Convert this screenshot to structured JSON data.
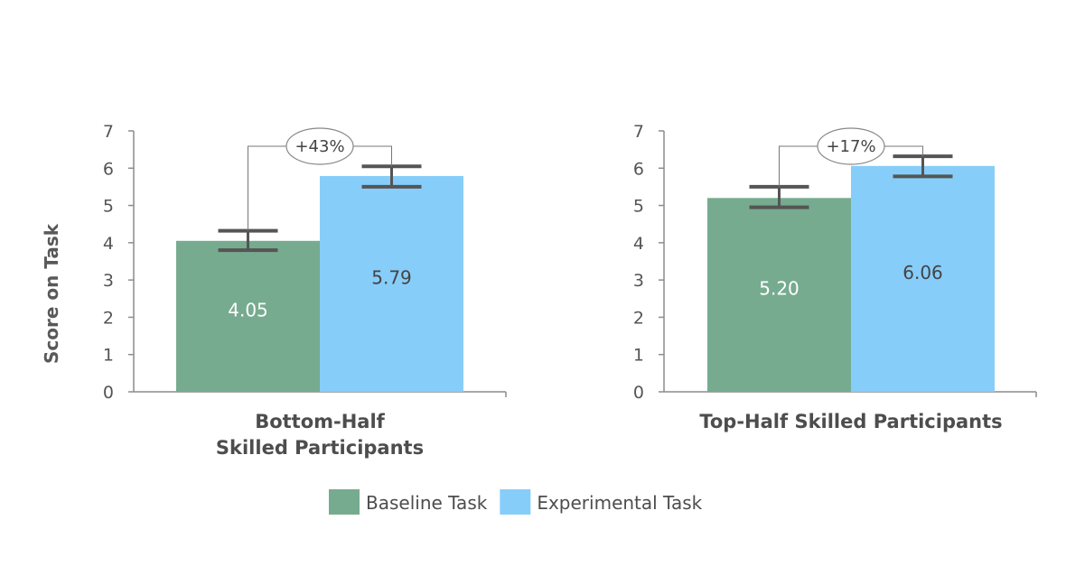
{
  "chart_data": [
    {
      "type": "bar",
      "categories": [
        "Baseline Task",
        "Experimental Task"
      ],
      "values": [
        4.05,
        5.79
      ],
      "error_bars": [
        [
          3.8,
          4.32
        ],
        [
          5.5,
          6.05
        ]
      ],
      "value_labels": [
        "4.05",
        "5.79"
      ],
      "xlabel": "Bottom-Half\nSkilled Participants",
      "ylabel": "Score on Task",
      "ylim": [
        0,
        7
      ],
      "yticks": [
        "0",
        "1",
        "2",
        "3",
        "4",
        "5",
        "6",
        "7"
      ],
      "annotation": "+43%",
      "grid": false
    },
    {
      "type": "bar",
      "categories": [
        "Baseline Task",
        "Experimental Task"
      ],
      "values": [
        5.2,
        6.06
      ],
      "error_bars": [
        [
          4.95,
          5.5
        ],
        [
          5.78,
          6.32
        ]
      ],
      "value_labels": [
        "5.20",
        "6.06"
      ],
      "xlabel": "Top-Half Skilled Participants",
      "ylabel": "",
      "ylim": [
        0,
        7
      ],
      "yticks": [
        "0",
        "1",
        "2",
        "3",
        "4",
        "5",
        "6",
        "7"
      ],
      "annotation": "+17%",
      "grid": false
    }
  ],
  "legend": {
    "placement": "bottom-center",
    "items": [
      {
        "label": "Baseline Task",
        "color": "#76ab8f"
      },
      {
        "label": "Experimental Task",
        "color": "#87cdf9"
      }
    ]
  },
  "colors": {
    "axis": "#8c8c8c",
    "error_bar": "#555555",
    "label_on_baseline": "#ffffff",
    "label_on_experimental": "#444444"
  }
}
